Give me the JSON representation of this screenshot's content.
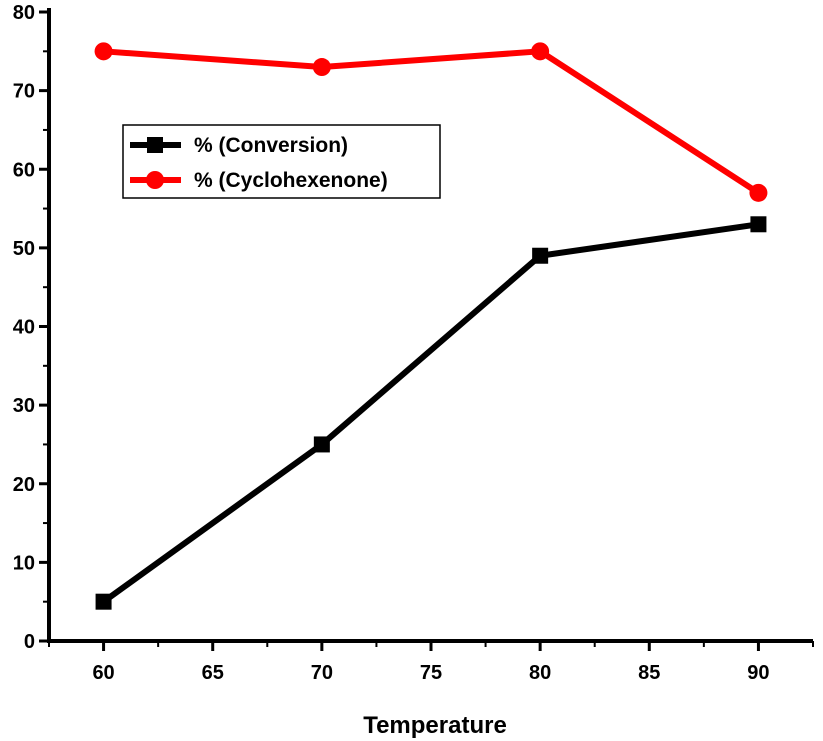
{
  "chart_data": {
    "type": "line",
    "title": "",
    "xlabel": "Temperature",
    "ylabel": "",
    "x": [
      60,
      70,
      80,
      90
    ],
    "xlim": [
      57.5,
      92.5
    ],
    "ylim": [
      0,
      80
    ],
    "xticks": [
      60,
      65,
      70,
      75,
      80,
      85,
      90
    ],
    "yticks": [
      0,
      10,
      20,
      30,
      40,
      50,
      60,
      70,
      80
    ],
    "grid": false,
    "legend_position": "upper-left",
    "series": [
      {
        "name": "% (Conversion)",
        "values": [
          5,
          25,
          49,
          53
        ],
        "color": "#000000",
        "marker": "square"
      },
      {
        "name": "% (Cyclohexenone)",
        "values": [
          75,
          73,
          75,
          57
        ],
        "color": "#ff0000",
        "marker": "circle"
      }
    ]
  }
}
